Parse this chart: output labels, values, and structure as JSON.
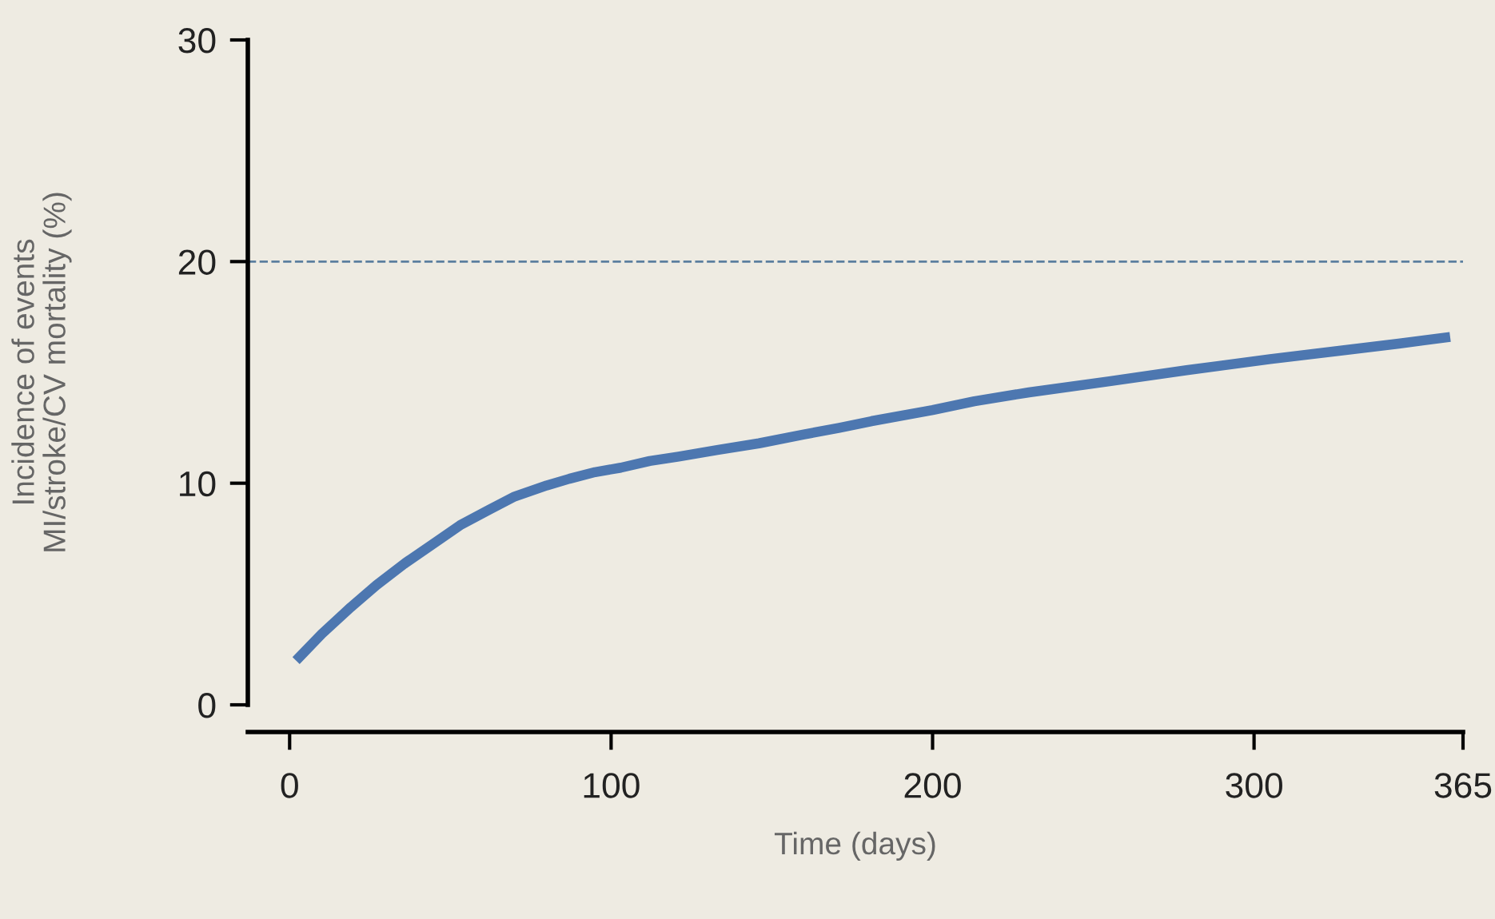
{
  "chart_data": {
    "type": "line",
    "xlabel": "Time (days)",
    "ylabel": "Incidence of events\nMI/stroke/CV mortality (%)",
    "xlim": [
      -13,
      365
    ],
    "xticks": [
      0,
      100,
      200,
      300,
      365
    ],
    "ylim": [
      0,
      30
    ],
    "yticks": [
      0,
      10,
      20,
      30
    ],
    "series": [
      {
        "color": "#4d77b0",
        "x": [
          2,
          10,
          19,
          27,
          36,
          45,
          53,
          62,
          70,
          80,
          87,
          95,
          103,
          112,
          121,
          133,
          146,
          160,
          171,
          181,
          200,
          213,
          230,
          255,
          279,
          305,
          328,
          345,
          361
        ],
        "values": [
          2.0,
          3.2,
          4.4,
          5.4,
          6.4,
          7.3,
          8.1,
          8.8,
          9.4,
          9.9,
          10.2,
          10.5,
          10.7,
          11.0,
          11.2,
          11.5,
          11.8,
          12.2,
          12.5,
          12.8,
          13.3,
          13.7,
          14.1,
          14.6,
          15.1,
          15.6,
          16.0,
          16.3,
          16.6
        ]
      }
    ],
    "ref_lines": [
      {
        "axis": "y",
        "value": 20,
        "color": "#5b7f9f",
        "line_style": "dashed"
      }
    ],
    "grid": false,
    "marker": "none",
    "line_style": "solid"
  }
}
